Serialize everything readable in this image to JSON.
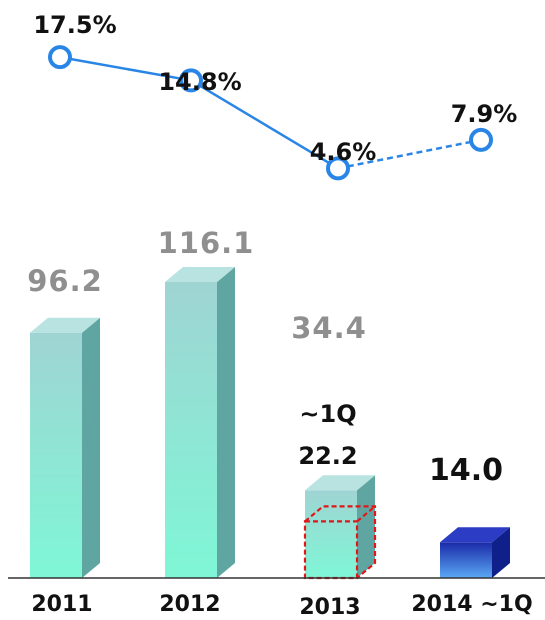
{
  "chart_data": {
    "type": "bar",
    "categories": [
      "2011",
      "2012",
      "2013",
      "2014 ~1Q"
    ],
    "bars": {
      "values": [
        96.2,
        116.1,
        34.4,
        14.0
      ],
      "labels": [
        "96.2",
        "116.1",
        "34.4",
        "14.0"
      ]
    },
    "sub_bar": {
      "category": "2013",
      "prefix": "~1Q",
      "value": 22.2,
      "label": "22.2"
    },
    "line": {
      "values": [
        17.5,
        14.8,
        4.6,
        7.9
      ],
      "labels": [
        "17.5%",
        "14.8%",
        "4.6%",
        "7.9%"
      ],
      "dashed_last_segment": true
    },
    "colors": {
      "bar_front_top": "#9fd4d3",
      "bar_front_bottom": "#7ff7d6",
      "bar_side": "#5fa6a3",
      "bar_top": "#b8e3e1",
      "last_bar_front_top": "#1a2aa8",
      "last_bar_front_bottom": "#5aa8f5",
      "last_bar_top": "#2d3cc4",
      "last_bar_side": "#10208a",
      "line": "#2a86e6",
      "marker_fill": "#ffffff",
      "sub_bar_outline": "#e01818",
      "axis": "#333333"
    }
  }
}
